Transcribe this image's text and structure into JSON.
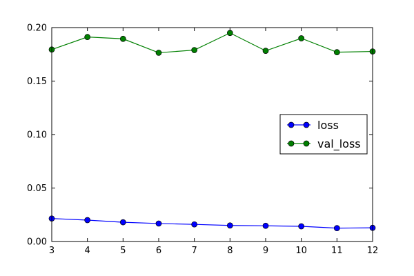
{
  "chart_data": {
    "type": "line",
    "title": "",
    "xlabel": "",
    "ylabel": "",
    "xlim": [
      3,
      12
    ],
    "ylim": [
      0.0,
      0.2
    ],
    "x": [
      3,
      4,
      5,
      6,
      7,
      8,
      9,
      10,
      11,
      12
    ],
    "xticks": [
      "3",
      "4",
      "5",
      "6",
      "7",
      "8",
      "9",
      "10",
      "11",
      "12"
    ],
    "yticks": [
      "0.00",
      "0.05",
      "0.10",
      "0.15",
      "0.20"
    ],
    "grid": false,
    "legend_position": "center-right",
    "series": [
      {
        "name": "loss",
        "color": "#0000ff",
        "values": [
          0.0215,
          0.02,
          0.018,
          0.0168,
          0.016,
          0.015,
          0.0147,
          0.0142,
          0.0125,
          0.0128
        ]
      },
      {
        "name": "val_loss",
        "color": "#008000",
        "values": [
          0.1795,
          0.1912,
          0.1895,
          0.1765,
          0.179,
          0.195,
          0.1783,
          0.19,
          0.177,
          0.1777
        ]
      }
    ]
  }
}
